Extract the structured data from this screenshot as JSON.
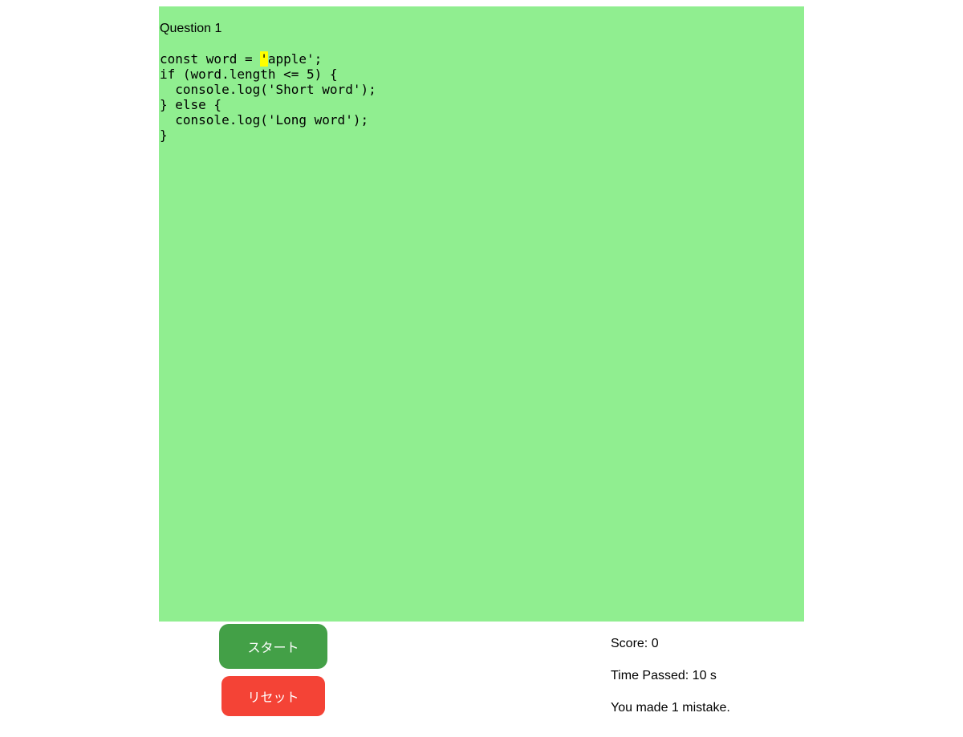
{
  "colors": {
    "page_bg": "#ffffff",
    "panel_bg": "#90ee90",
    "highlight_bg": "#ffff00",
    "start_button_bg": "#43a047",
    "reset_button_bg": "#f44336",
    "button_text": "#ffffff",
    "text": "#000000"
  },
  "question": {
    "title": "Question 1",
    "code_before_cursor": "const word = ",
    "code_current_char": "'",
    "code_after_cursor": "apple';\nif (word.length <= 5) {\n  console.log('Short word');\n} else {\n  console.log('Long word');\n}"
  },
  "buttons": {
    "start_label": "スタート",
    "reset_label": "リセット"
  },
  "stats": {
    "score_text": "Score: 0",
    "time_text": "Time Passed: 10 s",
    "mistake_text": "You made 1 mistake."
  }
}
